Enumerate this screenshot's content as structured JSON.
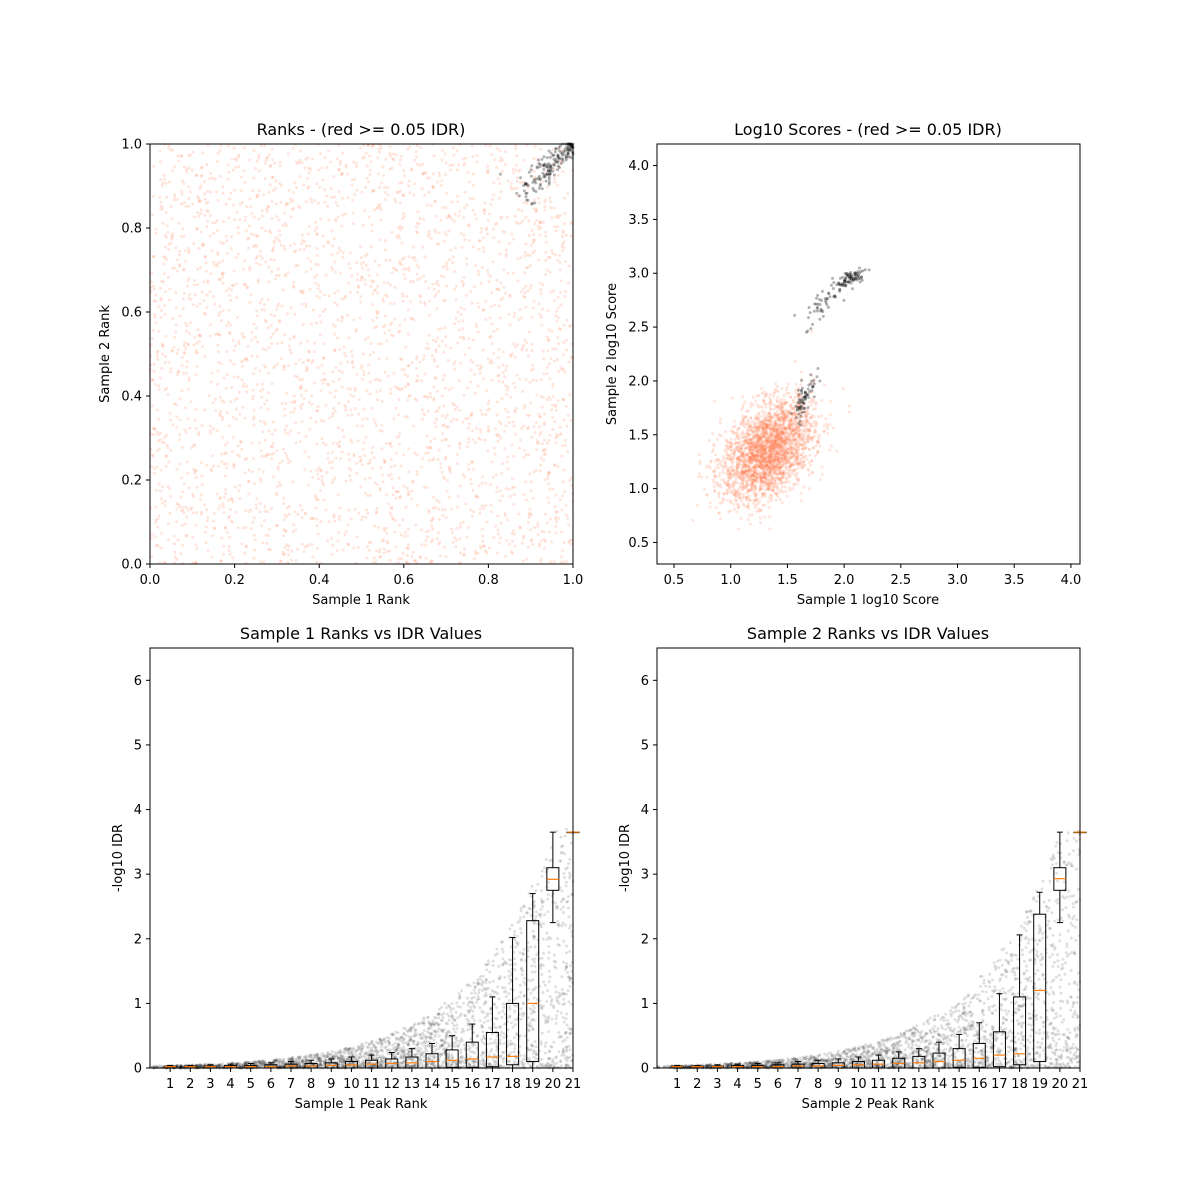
{
  "colors": {
    "pass": "#000000",
    "fail": "#ff7f50",
    "median": "#ff7f0e",
    "box": "#000000"
  },
  "chart_data": [
    {
      "type": "scatter",
      "title": "Ranks - (red >= 0.05 IDR)",
      "xlabel": "Sample 1 Rank",
      "ylabel": "Sample 2 Rank",
      "xlim": [
        0.0,
        1.0
      ],
      "ylim": [
        0.0,
        1.0
      ],
      "xticks": [
        "0.0",
        "0.2",
        "0.4",
        "0.6",
        "0.8",
        "1.0"
      ],
      "yticks": [
        "0.0",
        "0.2",
        "0.4",
        "0.6",
        "0.8",
        "1.0"
      ],
      "grid": false,
      "series": [
        {
          "color": "#ff7f50",
          "distribution": "uniform",
          "x_range": [
            0.0,
            1.0
          ],
          "y_range": [
            0.0,
            1.0
          ],
          "count": 3000
        },
        {
          "color": "#000000",
          "distribution": "diagonal-cluster",
          "x_range": [
            0.86,
            1.0
          ],
          "y_range": [
            0.86,
            1.0
          ],
          "count": 170
        }
      ]
    },
    {
      "type": "scatter",
      "title": "Log10 Scores - (red >= 0.05 IDR)",
      "xlabel": "Sample 1 log10 Score",
      "ylabel": "Sample 2 log10 Score",
      "xlim": [
        0.35,
        4.08
      ],
      "ylim": [
        0.3,
        4.2
      ],
      "xticks": [
        "0.5",
        "1.0",
        "1.5",
        "2.0",
        "2.5",
        "3.0",
        "3.5",
        "4.0"
      ],
      "yticks": [
        "0.5",
        "1.0",
        "1.5",
        "2.0",
        "2.5",
        "3.0",
        "3.5",
        "4.0"
      ],
      "grid": false,
      "series": [
        {
          "color": "#ff7f50",
          "distribution": "gaussian-cluster",
          "center": [
            1.33,
            1.35
          ],
          "spread": [
            0.2,
            0.24
          ],
          "count": 2600
        },
        {
          "color": "#000000",
          "distribution": "clusters",
          "clusters": [
            {
              "center": [
                2.05,
                2.95
              ],
              "spread": [
                0.08,
                0.07
              ],
              "count": 90
            },
            {
              "center": [
                1.8,
                2.7
              ],
              "spread": [
                0.07,
                0.12
              ],
              "count": 40
            },
            {
              "center": [
                1.65,
                1.85
              ],
              "spread": [
                0.05,
                0.13
              ],
              "count": 70
            }
          ]
        }
      ]
    },
    {
      "type": "box",
      "title": "Sample 1 Ranks vs IDR Values",
      "xlabel": "Sample 1 Peak Rank",
      "ylabel": "-log10 IDR",
      "xlim": [
        0,
        21
      ],
      "ylim": [
        0,
        6.5
      ],
      "xticks": [
        "1",
        "2",
        "3",
        "4",
        "5",
        "6",
        "7",
        "8",
        "9",
        "10",
        "11",
        "12",
        "13",
        "14",
        "15",
        "16",
        "17",
        "18",
        "19",
        "20",
        "21"
      ],
      "yticks": [
        "0",
        "1",
        "2",
        "3",
        "4",
        "5",
        "6"
      ],
      "grid": false,
      "boxes": [
        {
          "x": 1,
          "q1": 0.0,
          "median": 0.02,
          "q3": 0.03,
          "whisker_low": 0.0,
          "whisker_high": 0.04
        },
        {
          "x": 2,
          "q1": 0.0,
          "median": 0.02,
          "q3": 0.03,
          "whisker_low": 0.0,
          "whisker_high": 0.04
        },
        {
          "x": 3,
          "q1": 0.0,
          "median": 0.02,
          "q3": 0.03,
          "whisker_low": 0.0,
          "whisker_high": 0.05
        },
        {
          "x": 4,
          "q1": 0.0,
          "median": 0.02,
          "q3": 0.04,
          "whisker_low": 0.0,
          "whisker_high": 0.06
        },
        {
          "x": 5,
          "q1": 0.0,
          "median": 0.02,
          "q3": 0.04,
          "whisker_low": 0.0,
          "whisker_high": 0.07
        },
        {
          "x": 6,
          "q1": 0.0,
          "median": 0.02,
          "q3": 0.05,
          "whisker_low": 0.0,
          "whisker_high": 0.08
        },
        {
          "x": 7,
          "q1": 0.0,
          "median": 0.03,
          "q3": 0.06,
          "whisker_low": 0.0,
          "whisker_high": 0.1
        },
        {
          "x": 8,
          "q1": 0.0,
          "median": 0.03,
          "q3": 0.07,
          "whisker_low": 0.0,
          "whisker_high": 0.12
        },
        {
          "x": 9,
          "q1": 0.0,
          "median": 0.04,
          "q3": 0.08,
          "whisker_low": 0.0,
          "whisker_high": 0.14
        },
        {
          "x": 10,
          "q1": 0.0,
          "median": 0.05,
          "q3": 0.1,
          "whisker_low": 0.0,
          "whisker_high": 0.17
        },
        {
          "x": 11,
          "q1": 0.0,
          "median": 0.06,
          "q3": 0.12,
          "whisker_low": 0.0,
          "whisker_high": 0.2
        },
        {
          "x": 12,
          "q1": 0.0,
          "median": 0.07,
          "q3": 0.14,
          "whisker_low": 0.0,
          "whisker_high": 0.24
        },
        {
          "x": 13,
          "q1": 0.0,
          "median": 0.08,
          "q3": 0.17,
          "whisker_low": 0.0,
          "whisker_high": 0.3
        },
        {
          "x": 14,
          "q1": 0.0,
          "median": 0.1,
          "q3": 0.22,
          "whisker_low": 0.0,
          "whisker_high": 0.38
        },
        {
          "x": 15,
          "q1": 0.01,
          "median": 0.12,
          "q3": 0.28,
          "whisker_low": 0.0,
          "whisker_high": 0.5
        },
        {
          "x": 16,
          "q1": 0.01,
          "median": 0.14,
          "q3": 0.4,
          "whisker_low": 0.0,
          "whisker_high": 0.68
        },
        {
          "x": 17,
          "q1": 0.02,
          "median": 0.17,
          "q3": 0.55,
          "whisker_low": 0.0,
          "whisker_high": 1.1
        },
        {
          "x": 18,
          "q1": 0.05,
          "median": 0.18,
          "q3": 1.0,
          "whisker_low": 0.0,
          "whisker_high": 2.02
        },
        {
          "x": 19,
          "q1": 0.1,
          "median": 1.0,
          "q3": 2.28,
          "whisker_low": 0.0,
          "whisker_high": 2.7
        },
        {
          "x": 20,
          "q1": 2.75,
          "median": 2.92,
          "q3": 3.1,
          "whisker_low": 2.25,
          "whisker_high": 3.65
        },
        {
          "x": 21,
          "q1": 3.65,
          "median": 3.65,
          "q3": 3.65,
          "whisker_low": 3.65,
          "whisker_high": 3.65
        }
      ]
    },
    {
      "type": "box",
      "title": "Sample 2 Ranks vs IDR Values",
      "xlabel": "Sample 2 Peak Rank",
      "ylabel": "-log10 IDR",
      "xlim": [
        0,
        21
      ],
      "ylim": [
        0,
        6.5
      ],
      "xticks": [
        "1",
        "2",
        "3",
        "4",
        "5",
        "6",
        "7",
        "8",
        "9",
        "10",
        "11",
        "12",
        "13",
        "14",
        "15",
        "16",
        "17",
        "18",
        "19",
        "20",
        "21"
      ],
      "yticks": [
        "0",
        "1",
        "2",
        "3",
        "4",
        "5",
        "6"
      ],
      "grid": false,
      "boxes": [
        {
          "x": 1,
          "q1": 0.0,
          "median": 0.02,
          "q3": 0.03,
          "whisker_low": 0.0,
          "whisker_high": 0.04
        },
        {
          "x": 2,
          "q1": 0.0,
          "median": 0.02,
          "q3": 0.03,
          "whisker_low": 0.0,
          "whisker_high": 0.04
        },
        {
          "x": 3,
          "q1": 0.0,
          "median": 0.02,
          "q3": 0.03,
          "whisker_low": 0.0,
          "whisker_high": 0.05
        },
        {
          "x": 4,
          "q1": 0.0,
          "median": 0.02,
          "q3": 0.04,
          "whisker_low": 0.0,
          "whisker_high": 0.06
        },
        {
          "x": 5,
          "q1": 0.0,
          "median": 0.02,
          "q3": 0.04,
          "whisker_low": 0.0,
          "whisker_high": 0.07
        },
        {
          "x": 6,
          "q1": 0.0,
          "median": 0.02,
          "q3": 0.05,
          "whisker_low": 0.0,
          "whisker_high": 0.08
        },
        {
          "x": 7,
          "q1": 0.0,
          "median": 0.03,
          "q3": 0.06,
          "whisker_low": 0.0,
          "whisker_high": 0.1
        },
        {
          "x": 8,
          "q1": 0.0,
          "median": 0.03,
          "q3": 0.07,
          "whisker_low": 0.0,
          "whisker_high": 0.12
        },
        {
          "x": 9,
          "q1": 0.0,
          "median": 0.04,
          "q3": 0.08,
          "whisker_low": 0.0,
          "whisker_high": 0.14
        },
        {
          "x": 10,
          "q1": 0.0,
          "median": 0.05,
          "q3": 0.1,
          "whisker_low": 0.0,
          "whisker_high": 0.17
        },
        {
          "x": 11,
          "q1": 0.0,
          "median": 0.06,
          "q3": 0.12,
          "whisker_low": 0.0,
          "whisker_high": 0.2
        },
        {
          "x": 12,
          "q1": 0.0,
          "median": 0.07,
          "q3": 0.15,
          "whisker_low": 0.0,
          "whisker_high": 0.25
        },
        {
          "x": 13,
          "q1": 0.0,
          "median": 0.08,
          "q3": 0.18,
          "whisker_low": 0.0,
          "whisker_high": 0.3
        },
        {
          "x": 14,
          "q1": 0.0,
          "median": 0.1,
          "q3": 0.23,
          "whisker_low": 0.0,
          "whisker_high": 0.4
        },
        {
          "x": 15,
          "q1": 0.01,
          "median": 0.12,
          "q3": 0.3,
          "whisker_low": 0.0,
          "whisker_high": 0.52
        },
        {
          "x": 16,
          "q1": 0.01,
          "median": 0.15,
          "q3": 0.38,
          "whisker_low": 0.0,
          "whisker_high": 0.7
        },
        {
          "x": 17,
          "q1": 0.02,
          "median": 0.2,
          "q3": 0.56,
          "whisker_low": 0.0,
          "whisker_high": 1.15
        },
        {
          "x": 18,
          "q1": 0.05,
          "median": 0.22,
          "q3": 1.1,
          "whisker_low": 0.0,
          "whisker_high": 2.06
        },
        {
          "x": 19,
          "q1": 0.1,
          "median": 1.2,
          "q3": 2.38,
          "whisker_low": 0.0,
          "whisker_high": 2.72
        },
        {
          "x": 20,
          "q1": 2.75,
          "median": 2.93,
          "q3": 3.1,
          "whisker_low": 2.25,
          "whisker_high": 3.65
        },
        {
          "x": 21,
          "q1": 3.65,
          "median": 3.65,
          "q3": 3.65,
          "whisker_low": 3.65,
          "whisker_high": 3.65
        }
      ]
    }
  ]
}
